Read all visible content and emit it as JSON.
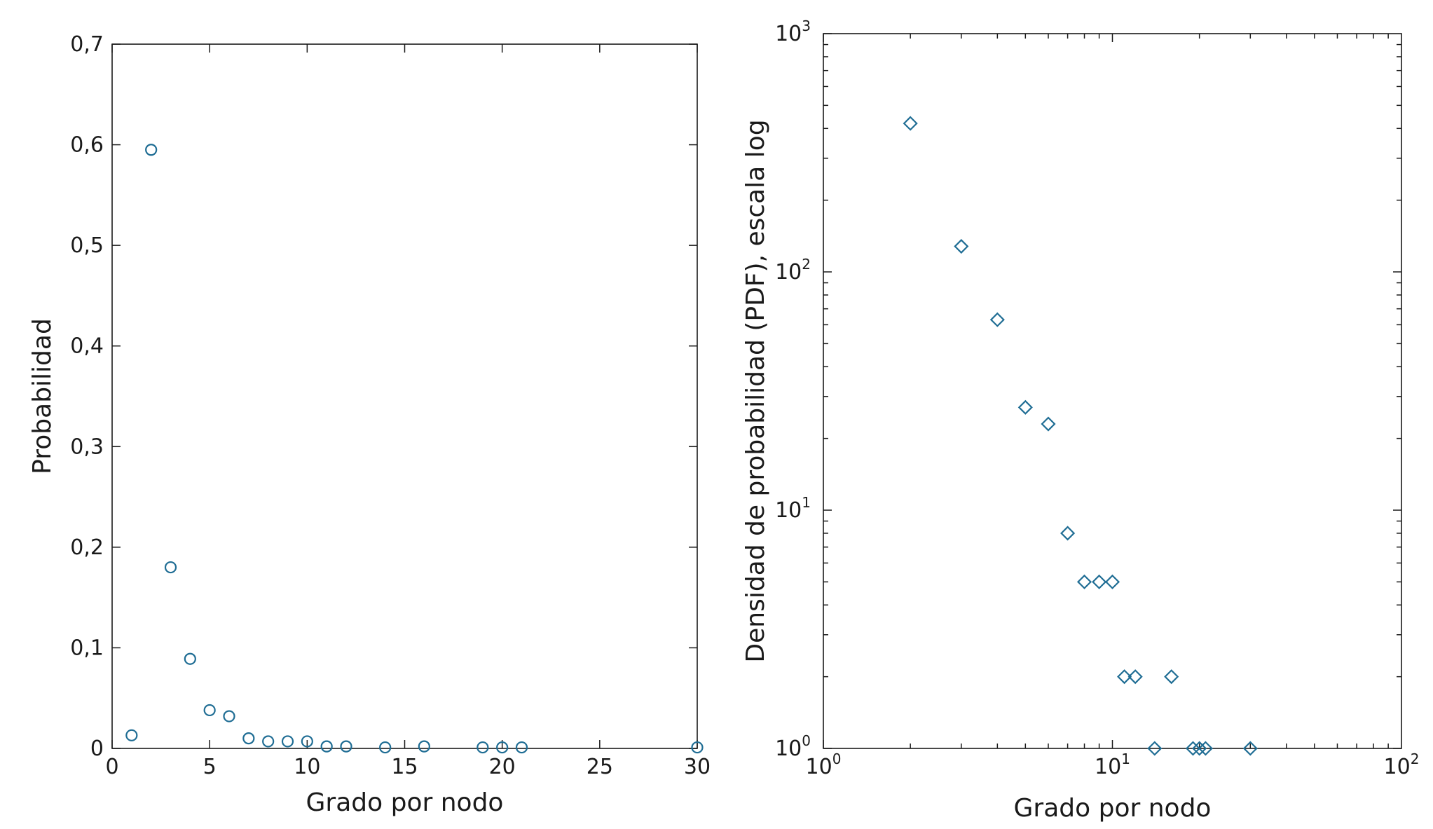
{
  "chart_data": [
    {
      "type": "scatter",
      "xlabel": "Grado por nodo",
      "ylabel": "Probabilidad",
      "xlim": [
        0,
        30
      ],
      "ylim": [
        0,
        0.7
      ],
      "x_ticks": [
        "0",
        "5",
        "10",
        "15",
        "20",
        "25",
        "30"
      ],
      "y_ticks": [
        "0",
        "0,1",
        "0,2",
        "0,3",
        "0,4",
        "0,5",
        "0,6",
        "0,7"
      ],
      "marker": "circle",
      "color": "#1f6d94",
      "grid": false,
      "series": [
        {
          "x": [
            1,
            2,
            3,
            4,
            5,
            6,
            7,
            8,
            9,
            10,
            11,
            12,
            14,
            16,
            19,
            20,
            21,
            30
          ],
          "y": [
            0.013,
            0.595,
            0.18,
            0.089,
            0.038,
            0.032,
            0.01,
            0.007,
            0.007,
            0.007,
            0.002,
            0.002,
            0.001,
            0.002,
            0.001,
            0.001,
            0.001,
            0.001
          ]
        }
      ]
    },
    {
      "type": "scatter",
      "xlabel": "Grado por nodo",
      "ylabel": "Densidad de probabilidad (PDF), escala log",
      "xscale": "log",
      "yscale": "log",
      "xlim": [
        1,
        100
      ],
      "ylim": [
        1,
        1000
      ],
      "x_ticks": [
        {
          "base": "10",
          "exp": "0"
        },
        {
          "base": "10",
          "exp": "1"
        },
        {
          "base": "10",
          "exp": "2"
        }
      ],
      "y_ticks": [
        {
          "base": "10",
          "exp": "0"
        },
        {
          "base": "10",
          "exp": "1"
        },
        {
          "base": "10",
          "exp": "2"
        },
        {
          "base": "10",
          "exp": "3"
        }
      ],
      "marker": "diamond",
      "color": "#1f6d94",
      "grid": false,
      "series": [
        {
          "x": [
            2,
            3,
            4,
            5,
            6,
            7,
            8,
            9,
            10,
            11,
            12,
            14,
            16,
            19,
            20,
            21,
            30
          ],
          "y": [
            420,
            128,
            63,
            27,
            23,
            8,
            5,
            5,
            5,
            2,
            2,
            1,
            2,
            1,
            1,
            1,
            1
          ]
        }
      ]
    }
  ]
}
